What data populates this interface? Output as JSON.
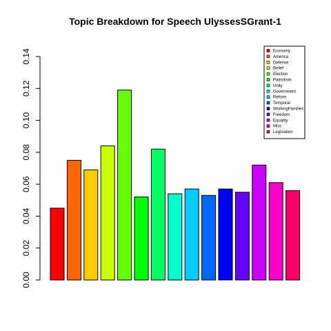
{
  "chart_data": {
    "type": "bar",
    "title": "Topic Breakdown for Speech UlyssesSGrant-1",
    "xlabel": "",
    "ylabel": "",
    "ylim": [
      0,
      0.14
    ],
    "yticks": [
      "0.00",
      "0.02",
      "0.04",
      "0.06",
      "0.08",
      "0.10",
      "0.12",
      "0.14"
    ],
    "grid": false,
    "legend_position": "top-right",
    "categories": [
      "Economy",
      "America",
      "Defense",
      "Belief",
      "Election",
      "Patriotism",
      "Unity",
      "Government",
      "Reform",
      "Temporal",
      "WorkingFamilies",
      "Freedom",
      "Equality",
      "Misc",
      "Legislation"
    ],
    "values": [
      0.045,
      0.075,
      0.069,
      0.084,
      0.119,
      0.052,
      0.082,
      0.054,
      0.057,
      0.053,
      0.057,
      0.055,
      0.072,
      0.061,
      0.056
    ],
    "colors": [
      "#FF0000",
      "#FF6600",
      "#FFCC00",
      "#CCFF00",
      "#66FF00",
      "#00FF00",
      "#00FF66",
      "#00FFCC",
      "#00CCFF",
      "#0066FF",
      "#0000FF",
      "#6600FF",
      "#CC00FF",
      "#FF00CC",
      "#FF0066"
    ]
  }
}
